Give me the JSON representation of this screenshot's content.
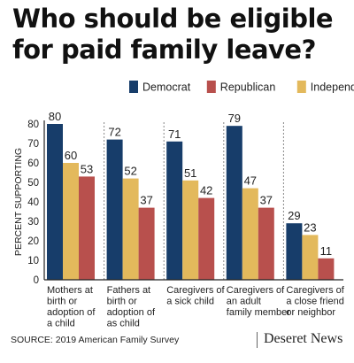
{
  "title_lines": [
    "Who should be eligible",
    "for paid family leave?"
  ],
  "source": "SOURCE: 2019 American Family Survey",
  "brand": "Deseret News",
  "colors": {
    "democrat": "#173d6a",
    "republican": "#b8504d",
    "independent": "#e3b95c"
  },
  "chart_data": {
    "type": "bar",
    "ylabel": "PERCENT SUPPORTING",
    "ylim": [
      0,
      80
    ],
    "yticks": [
      0,
      10,
      20,
      30,
      40,
      50,
      60,
      70,
      80
    ],
    "legend_placement": "top-right",
    "categories": [
      [
        "Mothers at",
        "birth or",
        "adoption of",
        "a child"
      ],
      [
        "Fathers at",
        "birth or",
        "adoption of",
        "as child"
      ],
      [
        "Caregivers of",
        "a sick child"
      ],
      [
        "Caregivers of",
        "an adult",
        "family member"
      ],
      [
        "Caregivers of",
        "a close friend",
        "or neighbor"
      ]
    ],
    "series": [
      {
        "name": "Democrat",
        "color": "#173d6a",
        "values": [
          80,
          72,
          71,
          79,
          29
        ]
      },
      {
        "name": "Republican",
        "color": "#b8504d",
        "values": [
          53,
          37,
          42,
          37,
          11
        ]
      },
      {
        "name": "Independent",
        "color": "#e3b95c",
        "values": [
          60,
          52,
          51,
          47,
          23
        ]
      }
    ]
  }
}
